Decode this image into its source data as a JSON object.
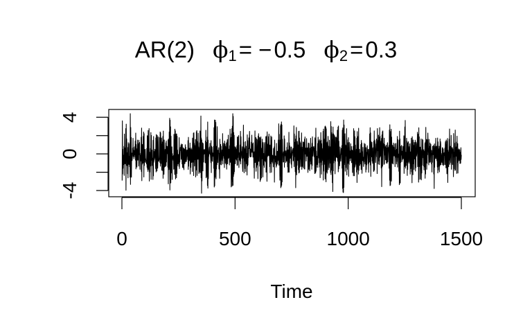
{
  "chart_data": {
    "type": "line",
    "title": {
      "model": "AR(2)",
      "phi_symbol": "ϕ",
      "phi1_subscript": "1",
      "phi1_relation": "= −",
      "phi1_value": "0.5",
      "phi2_subscript": "2",
      "phi2_relation": "=",
      "phi2_value": "0.3"
    },
    "xlabel": "Time",
    "ylabel": "",
    "xlim": [
      0,
      1500
    ],
    "ylim": [
      -4.3,
      4.4
    ],
    "x_ticks": [
      0,
      500,
      1000,
      1500
    ],
    "x_tick_labels": [
      "0",
      "500",
      "1000",
      "1500"
    ],
    "y_ticks": [
      -4,
      -2,
      0,
      2,
      4
    ],
    "y_tick_labels": [
      "-4",
      "",
      "0",
      "",
      "4"
    ],
    "grid": false,
    "legend": "none",
    "series": [
      {
        "n": 1500,
        "ar_coefficients": [
          -0.5,
          0.3
        ],
        "x_start": 1,
        "x_step": 1,
        "color": "#000000"
      }
    ]
  }
}
